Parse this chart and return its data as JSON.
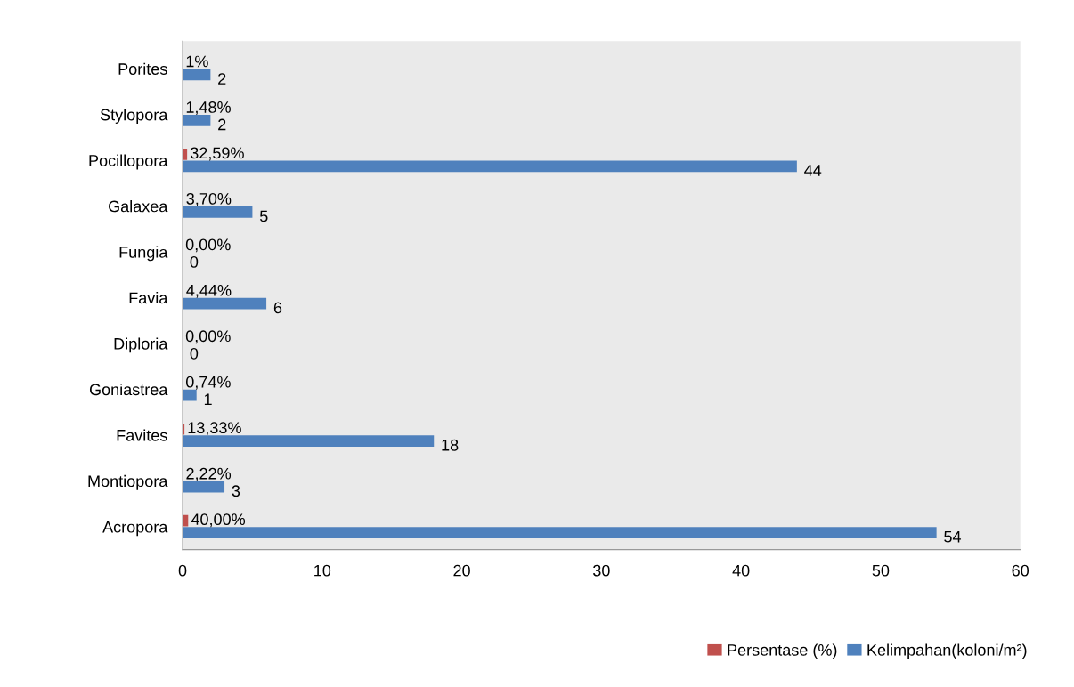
{
  "chart_data": {
    "type": "bar",
    "orientation": "horizontal",
    "categories": [
      "Porites",
      "Stylopora",
      "Pocillopora",
      "Galaxea",
      "Fungia",
      "Favia",
      "Diploria",
      "Goniastrea",
      "Favites",
      "Montiopora",
      "Acropora"
    ],
    "series": [
      {
        "name": "Persentase (%)",
        "color": "#c0504d",
        "values": [
          0.01,
          0.0148,
          0.3259,
          0.037,
          0,
          0.0444,
          0,
          0.0074,
          0.1333,
          0.0222,
          0.4
        ],
        "value_labels": [
          "1%",
          "1,48%",
          "32,59%",
          "3,70%",
          "0,00%",
          "4,44%",
          "0,00%",
          "0,74%",
          "13,33%",
          "2,22%",
          "40,00%"
        ]
      },
      {
        "name": "Kelimpahan(koloni/m²)",
        "color": "#4f81bd",
        "values": [
          2,
          2,
          44,
          5,
          0,
          6,
          0,
          1,
          18,
          3,
          54
        ],
        "value_labels": [
          "2",
          "2",
          "44",
          "5",
          "0",
          "6",
          "0",
          "1",
          "18",
          "3",
          "54"
        ]
      }
    ],
    "xlim": [
      0,
      60
    ],
    "xticks": [
      0,
      10,
      20,
      30,
      40,
      50,
      60
    ],
    "grid": false,
    "legend": "bottom right"
  }
}
